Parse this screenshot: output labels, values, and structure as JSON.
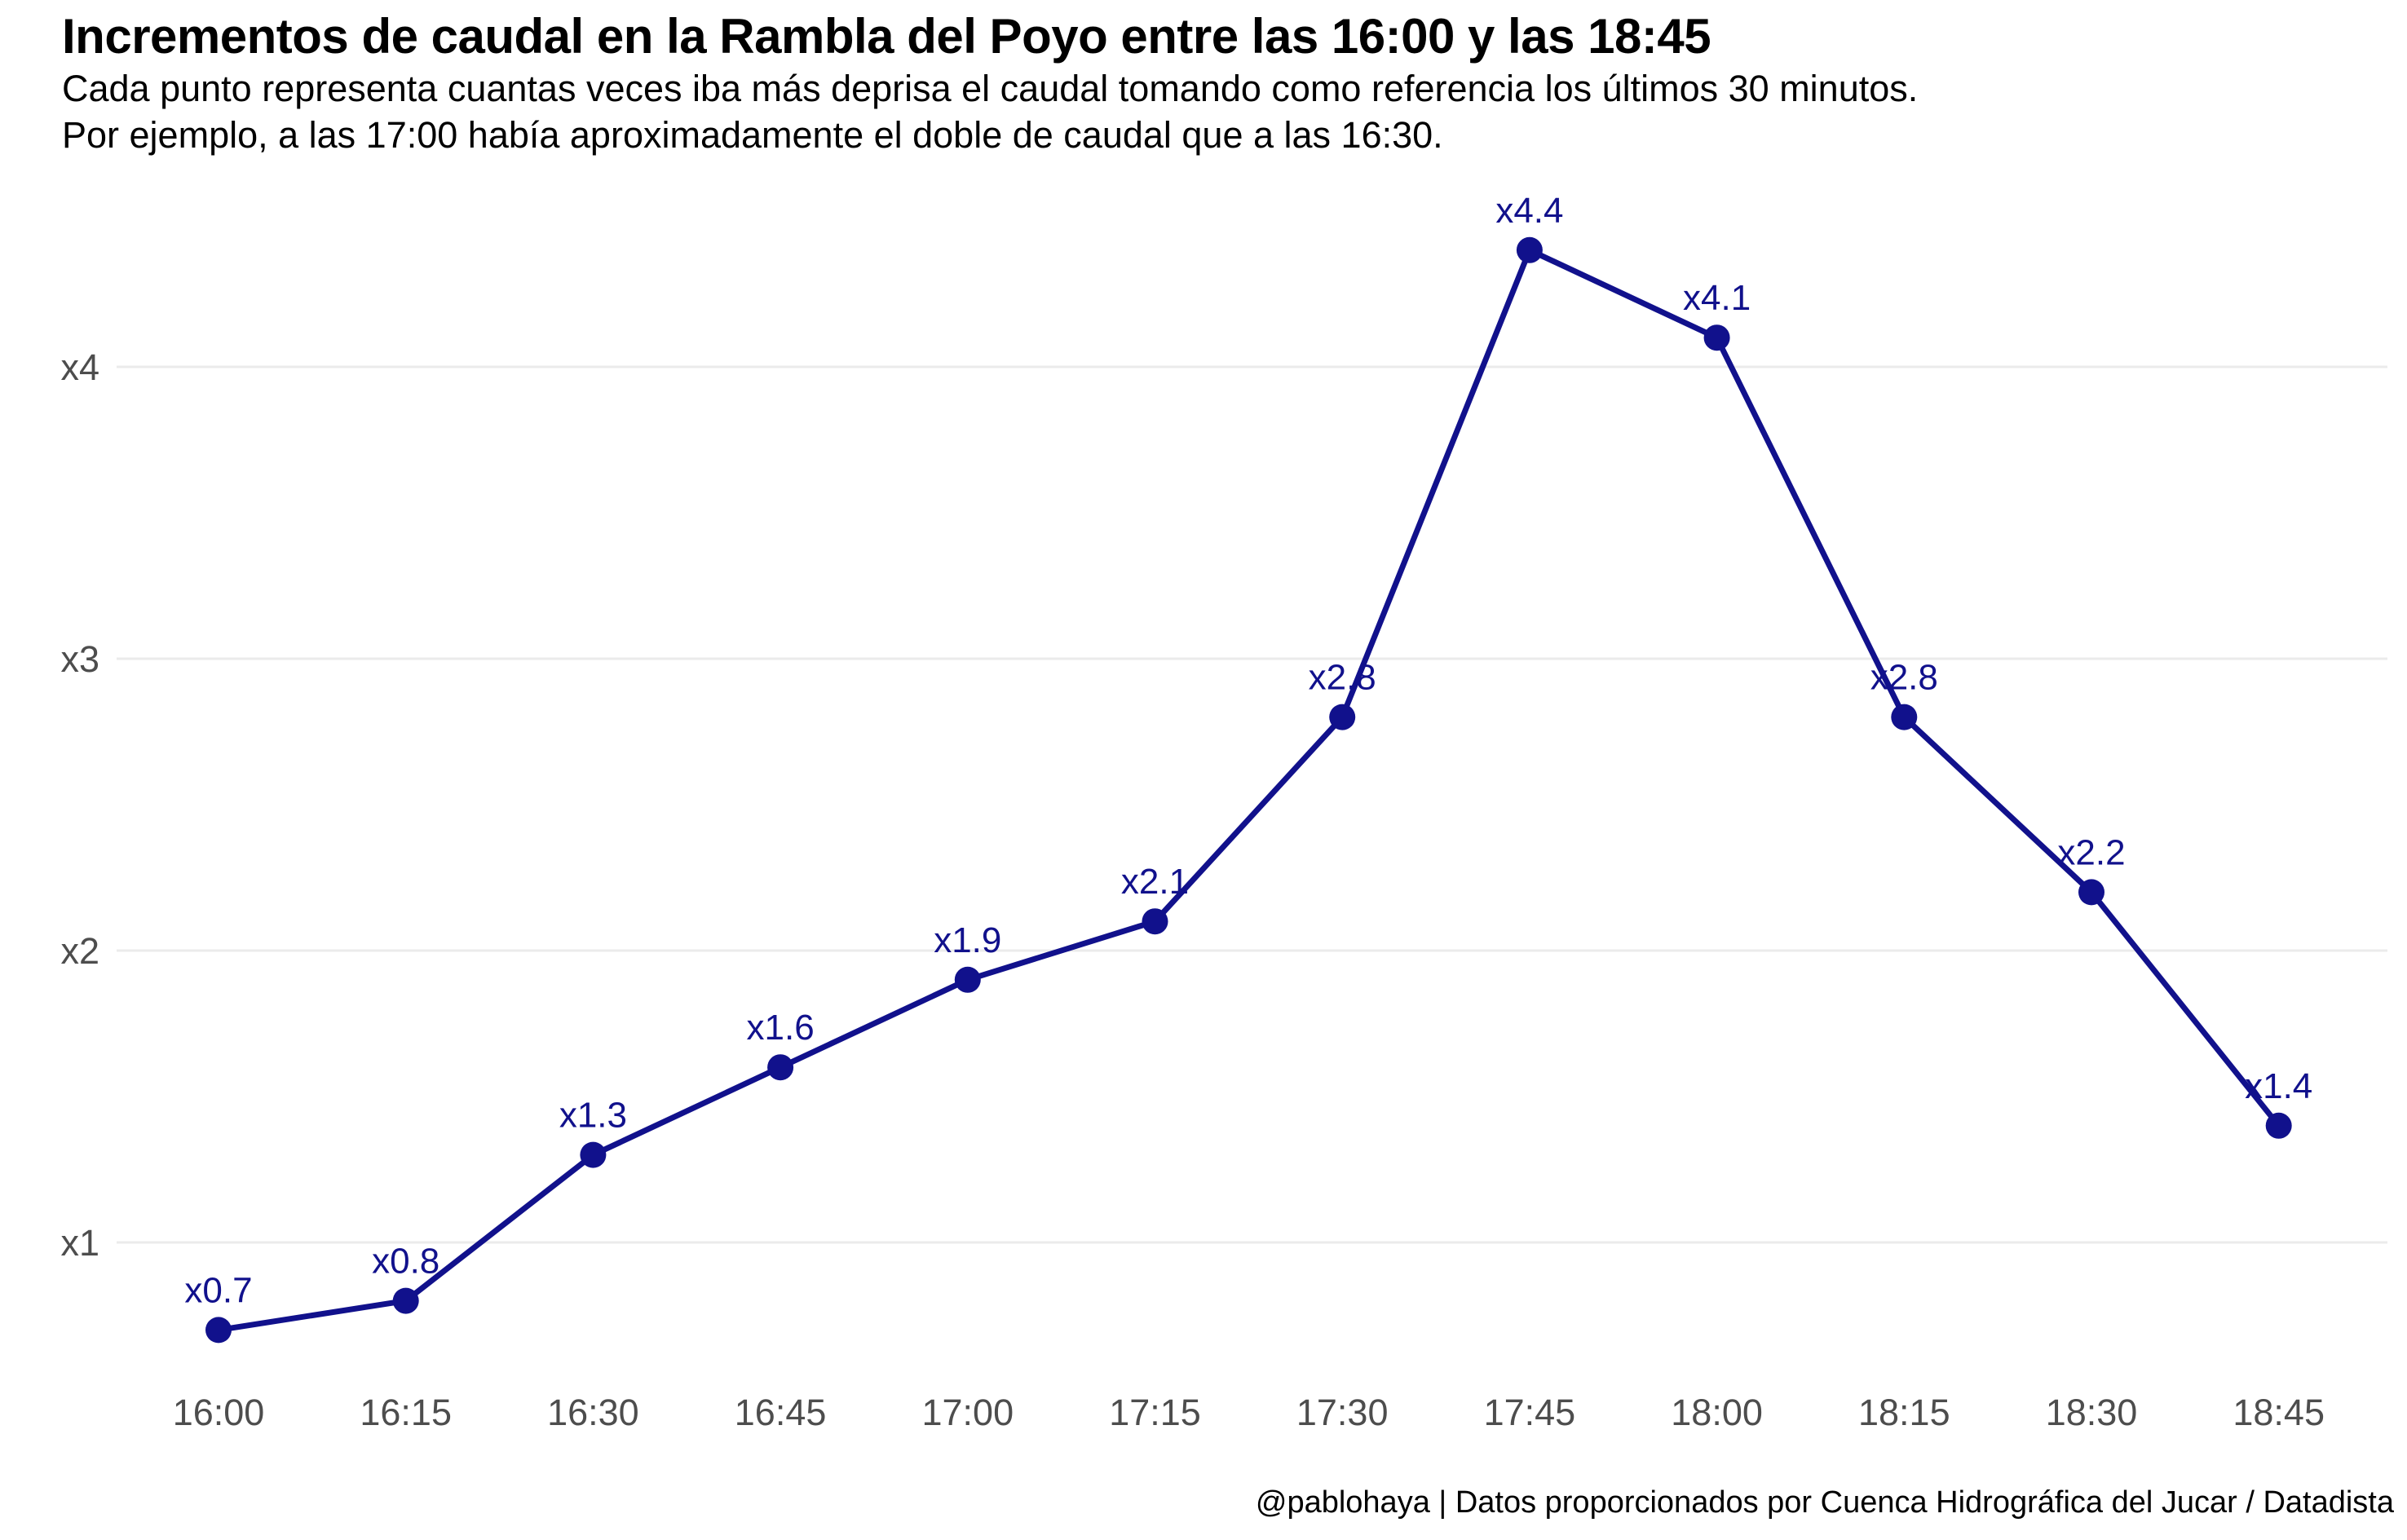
{
  "chart_data": {
    "type": "line",
    "title": "Incrementos de caudal en la Rambla del Poyo entre las 16:00 y las 18:45",
    "subtitle_line1": "Cada punto representa cuantas veces iba más deprisa el caudal tomando como referencia los últimos 30 minutos.",
    "subtitle_line2": "Por ejemplo, a las 17:00 había aproximadamente el doble de caudal que a las 16:30.",
    "caption": "@pablohaya | Datos proporcionados por Cuenca Hidrográfica del Jucar / Datadista",
    "categories": [
      "16:00",
      "16:15",
      "16:30",
      "16:45",
      "17:00",
      "17:15",
      "17:30",
      "17:45",
      "18:00",
      "18:15",
      "18:30",
      "18:45"
    ],
    "values": [
      0.7,
      0.8,
      1.3,
      1.6,
      1.9,
      2.1,
      2.8,
      4.4,
      4.1,
      2.8,
      2.2,
      1.4
    ],
    "point_labels": [
      "x0.7",
      "x0.8",
      "x1.3",
      "x1.6",
      "x1.9",
      "x2.1",
      "x2.8",
      "x4.4",
      "x4.1",
      "x2.8",
      "x2.2",
      "x1.4"
    ],
    "y_ticks": [
      {
        "label": "x1",
        "value": 1
      },
      {
        "label": "x2",
        "value": 2
      },
      {
        "label": "x3",
        "value": 3
      },
      {
        "label": "x4",
        "value": 4
      }
    ],
    "xlabel": "",
    "ylabel": "",
    "ylim": [
      0.5,
      4.6
    ],
    "grid": "horizontal-major-only",
    "legend": "none",
    "colors": {
      "series": "#11118C",
      "point_label": "#11118C",
      "axis_text": "#4D4D4D",
      "gridline": "#EBEBEB",
      "background": "#FFFFFF",
      "title_text": "#000000"
    }
  }
}
